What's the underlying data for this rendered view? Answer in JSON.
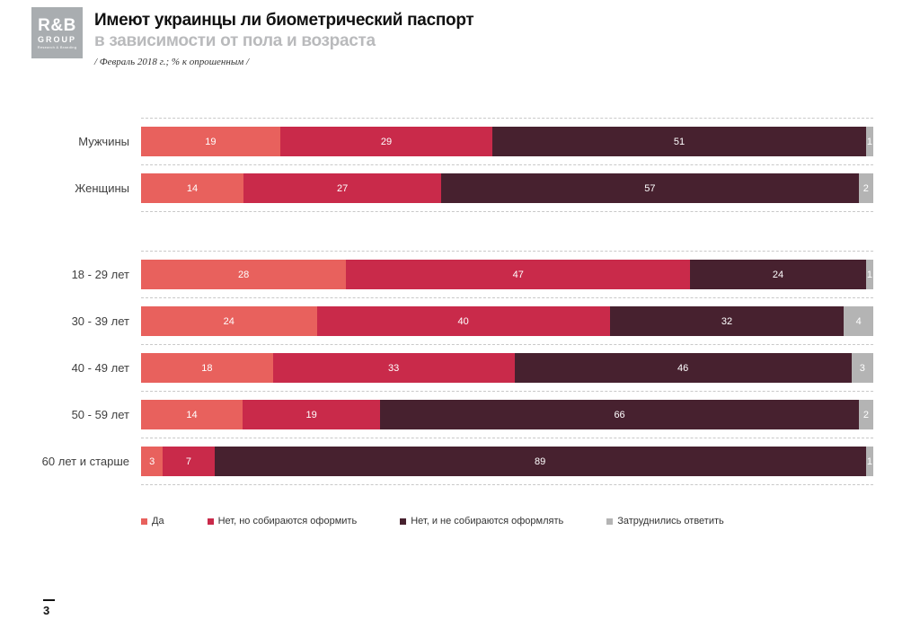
{
  "header": {
    "logo_line1": "R&B",
    "logo_line2": "GROUP",
    "logo_line3": "Research & Branding",
    "title": "Имеют украинцы ли биометрический паспорт",
    "subtitle": "в зависимости от пола и возраста",
    "note": "/ Февраль 2018  г.; % к опрошенным  /"
  },
  "chart_data": {
    "type": "bar",
    "orientation": "horizontal",
    "stacked": true,
    "xlim": [
      0,
      100
    ],
    "grid": "dashed-row-separators",
    "legend_position": "bottom",
    "categories": [
      "Мужчины",
      "Женщины",
      "18 - 29 лет",
      "30 - 39 лет",
      "40 - 49 лет",
      "50 - 59 лет",
      "60 лет и старше"
    ],
    "group_breaks": [
      2
    ],
    "series": [
      {
        "name": "Да",
        "color": "#e8615d",
        "values": [
          19,
          14,
          28,
          24,
          18,
          14,
          3
        ]
      },
      {
        "name": "Нет, но собираются оформить",
        "color": "#c92a4a",
        "values": [
          29,
          27,
          47,
          40,
          33,
          19,
          7
        ]
      },
      {
        "name": "Нет, и не собираются оформлять",
        "color": "#47212f",
        "values": [
          51,
          57,
          24,
          32,
          46,
          66,
          89
        ]
      },
      {
        "name": "Затруднились ответить",
        "color": "#b4b4b4",
        "values": [
          1,
          2,
          1,
          4,
          3,
          2,
          1
        ]
      }
    ]
  },
  "footer": {
    "page_number": "3"
  }
}
